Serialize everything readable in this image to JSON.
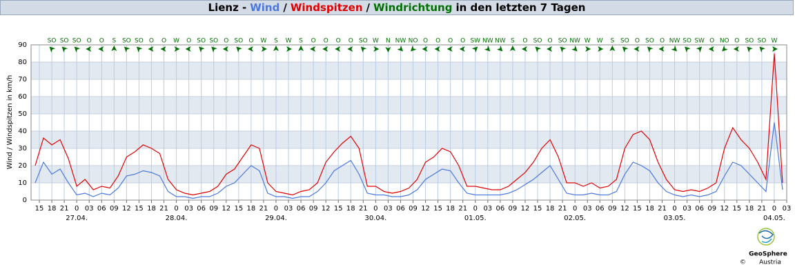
{
  "chart_data": {
    "type": "line",
    "title_prefix": "Lienz -",
    "title_suffix": "in den letzten 7 Tagen",
    "ylabel": "Wind / Windspitzen in km/h",
    "ylim": [
      0,
      90
    ],
    "yticks": [
      0,
      10,
      20,
      30,
      40,
      50,
      60,
      70,
      80,
      90
    ],
    "xlim": [
      13,
      195
    ],
    "xticks": [
      {
        "value": 15,
        "label": "15"
      },
      {
        "value": 18,
        "label": "18"
      },
      {
        "value": 21,
        "label": "21"
      },
      {
        "value": 24,
        "label": "0"
      },
      {
        "value": 27,
        "label": "03"
      },
      {
        "value": 30,
        "label": "06"
      },
      {
        "value": 33,
        "label": "09"
      },
      {
        "value": 36,
        "label": "12"
      },
      {
        "value": 39,
        "label": "15"
      },
      {
        "value": 42,
        "label": "18"
      },
      {
        "value": 45,
        "label": "21"
      },
      {
        "value": 48,
        "label": "0"
      },
      {
        "value": 51,
        "label": "03"
      },
      {
        "value": 54,
        "label": "06"
      },
      {
        "value": 57,
        "label": "09"
      },
      {
        "value": 60,
        "label": "12"
      },
      {
        "value": 63,
        "label": "15"
      },
      {
        "value": 66,
        "label": "18"
      },
      {
        "value": 69,
        "label": "21"
      },
      {
        "value": 72,
        "label": "0"
      },
      {
        "value": 75,
        "label": "03"
      },
      {
        "value": 78,
        "label": "06"
      },
      {
        "value": 81,
        "label": "09"
      },
      {
        "value": 84,
        "label": "12"
      },
      {
        "value": 87,
        "label": "15"
      },
      {
        "value": 90,
        "label": "18"
      },
      {
        "value": 93,
        "label": "21"
      },
      {
        "value": 96,
        "label": "0"
      },
      {
        "value": 99,
        "label": "03"
      },
      {
        "value": 102,
        "label": "06"
      },
      {
        "value": 105,
        "label": "09"
      },
      {
        "value": 108,
        "label": "12"
      },
      {
        "value": 111,
        "label": "15"
      },
      {
        "value": 114,
        "label": "18"
      },
      {
        "value": 117,
        "label": "21"
      },
      {
        "value": 120,
        "label": "0"
      },
      {
        "value": 123,
        "label": "03"
      },
      {
        "value": 126,
        "label": "06"
      },
      {
        "value": 129,
        "label": "09"
      },
      {
        "value": 132,
        "label": "12"
      },
      {
        "value": 135,
        "label": "15"
      },
      {
        "value": 138,
        "label": "18"
      },
      {
        "value": 141,
        "label": "21"
      },
      {
        "value": 144,
        "label": "0"
      },
      {
        "value": 147,
        "label": "03"
      },
      {
        "value": 150,
        "label": "06"
      },
      {
        "value": 153,
        "label": "09"
      },
      {
        "value": 156,
        "label": "12"
      },
      {
        "value": 159,
        "label": "15"
      },
      {
        "value": 162,
        "label": "18"
      },
      {
        "value": 165,
        "label": "21"
      },
      {
        "value": 168,
        "label": "0"
      },
      {
        "value": 171,
        "label": "03"
      },
      {
        "value": 174,
        "label": "06"
      },
      {
        "value": 177,
        "label": "09"
      },
      {
        "value": 180,
        "label": "12"
      },
      {
        "value": 183,
        "label": "15"
      },
      {
        "value": 186,
        "label": "18"
      },
      {
        "value": 189,
        "label": "21"
      },
      {
        "value": 192,
        "label": "0"
      },
      {
        "value": 195,
        "label": "03"
      }
    ],
    "date_ticks": [
      {
        "value": 24,
        "label": "27.04."
      },
      {
        "value": 48,
        "label": "28.04."
      },
      {
        "value": 72,
        "label": "29.04."
      },
      {
        "value": 96,
        "label": "30.04."
      },
      {
        "value": 120,
        "label": "01.05."
      },
      {
        "value": 144,
        "label": "02.05."
      },
      {
        "value": 168,
        "label": "03.05."
      },
      {
        "value": 192,
        "label": "04.05."
      }
    ],
    "grid": true,
    "x": [
      14,
      16,
      18,
      20,
      22,
      24,
      26,
      28,
      30,
      32,
      34,
      36,
      38,
      40,
      42,
      44,
      46,
      48,
      50,
      52,
      54,
      56,
      58,
      60,
      62,
      64,
      66,
      68,
      70,
      72,
      74,
      76,
      78,
      80,
      82,
      84,
      86,
      88,
      90,
      92,
      94,
      96,
      98,
      100,
      102,
      104,
      106,
      108,
      110,
      112,
      114,
      116,
      118,
      120,
      122,
      124,
      126,
      128,
      130,
      132,
      134,
      136,
      138,
      140,
      142,
      144,
      146,
      148,
      150,
      152,
      154,
      156,
      158,
      160,
      162,
      164,
      166,
      168,
      170,
      172,
      174,
      176,
      178,
      180,
      182,
      184,
      186,
      188,
      190,
      192,
      194
    ],
    "series": [
      {
        "name": "Wind",
        "color": "#4a78dc",
        "values": [
          10,
          22,
          15,
          18,
          10,
          3,
          4,
          2,
          4,
          3,
          7,
          14,
          15,
          17,
          16,
          14,
          5,
          2,
          2,
          1,
          2,
          2,
          4,
          8,
          10,
          15,
          20,
          17,
          4,
          2,
          2,
          1,
          2,
          2,
          5,
          10,
          17,
          20,
          23,
          15,
          4,
          3,
          3,
          2,
          2,
          3,
          6,
          12,
          15,
          18,
          17,
          10,
          4,
          3,
          3,
          3,
          3,
          4,
          6,
          9,
          12,
          16,
          20,
          12,
          4,
          3,
          3,
          4,
          3,
          3,
          5,
          15,
          22,
          20,
          17,
          10,
          5,
          3,
          2,
          3,
          2,
          3,
          5,
          14,
          22,
          20,
          15,
          10,
          5,
          45,
          6
        ]
      },
      {
        "name": "Windspitzen",
        "color": "#e00000",
        "values": [
          20,
          36,
          32,
          35,
          24,
          8,
          12,
          6,
          8,
          7,
          14,
          25,
          28,
          32,
          30,
          27,
          12,
          6,
          4,
          3,
          4,
          5,
          8,
          15,
          18,
          25,
          32,
          30,
          10,
          5,
          4,
          3,
          5,
          6,
          10,
          22,
          28,
          33,
          37,
          30,
          8,
          8,
          5,
          4,
          5,
          7,
          12,
          22,
          25,
          30,
          28,
          20,
          8,
          8,
          7,
          6,
          6,
          8,
          12,
          16,
          22,
          30,
          35,
          25,
          10,
          10,
          8,
          10,
          7,
          8,
          12,
          30,
          38,
          40,
          35,
          22,
          12,
          6,
          5,
          6,
          5,
          7,
          10,
          30,
          42,
          35,
          30,
          22,
          12,
          85,
          10
        ]
      }
    ],
    "directions": {
      "name": "Windrichtung",
      "color": "#007000",
      "x": [
        18,
        21,
        24,
        27,
        30,
        33,
        36,
        39,
        42,
        45,
        48,
        51,
        54,
        57,
        60,
        63,
        66,
        69,
        72,
        75,
        78,
        81,
        84,
        87,
        90,
        93,
        96,
        99,
        102,
        105,
        108,
        111,
        114,
        117,
        120,
        123,
        126,
        129,
        132,
        135,
        138,
        141,
        144,
        147,
        150,
        153,
        156,
        159,
        162,
        165,
        168,
        171,
        174,
        177,
        180,
        183,
        186,
        189,
        192
      ],
      "labels": [
        "SO",
        "SO",
        "SO",
        "O",
        "O",
        "S",
        "SO",
        "SO",
        "O",
        "O",
        "W",
        "O",
        "SO",
        "SO",
        "O",
        "SO",
        "O",
        "W",
        "S",
        "W",
        "S",
        "O",
        "O",
        "O",
        "O",
        "SO",
        "W",
        "N",
        "NW",
        "NO",
        "O",
        "O",
        "O",
        "O",
        "SW",
        "NW",
        "NW",
        "S",
        "O",
        "SO",
        "O",
        "SO",
        "NW",
        "W",
        "W",
        "S",
        "SO",
        "O",
        "SO",
        "O",
        "NW",
        "SO",
        "SW",
        "O",
        "NO",
        "O",
        "SO",
        "SO",
        "W"
      ]
    },
    "credit": {
      "name": "GeoSphere",
      "country": "Austria",
      "copyright": "©"
    }
  }
}
